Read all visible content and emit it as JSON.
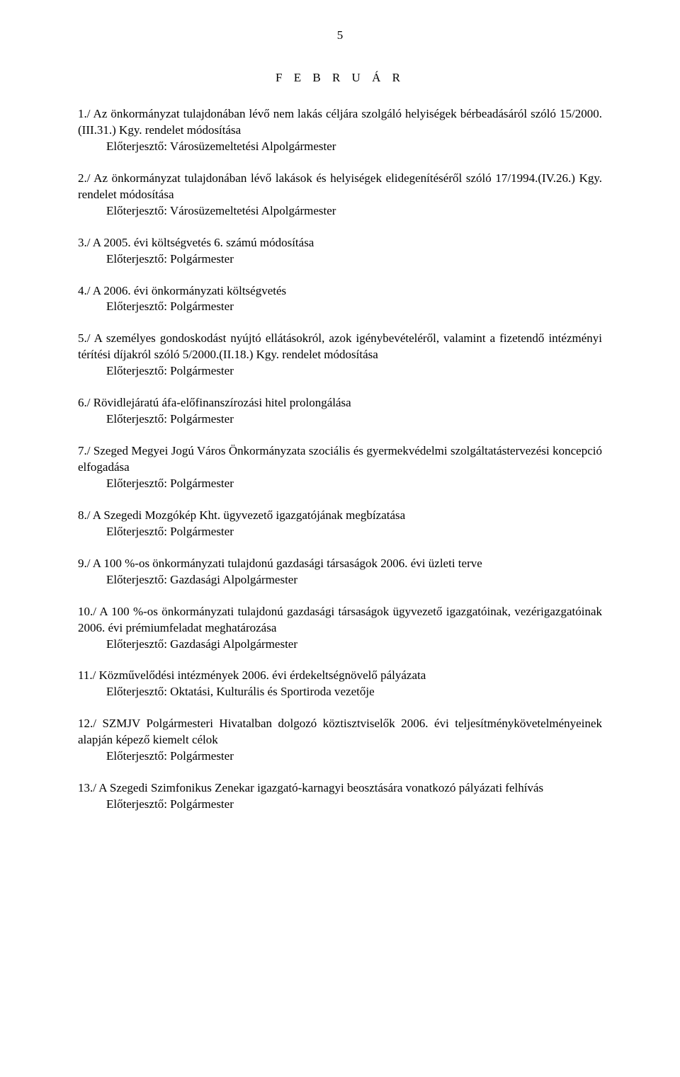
{
  "page_number": "5",
  "month_title": "F E B R U Á R",
  "items": [
    {
      "title": "1./ Az önkormányzat tulajdonában lévő nem lakás céljára szolgáló helyiségek bérbeadásáról szóló 15/2000.(III.31.) Kgy. rendelet módosítása",
      "submitter": "Előterjesztő: Városüzemeltetési Alpolgármester"
    },
    {
      "title": "2./ Az önkormányzat tulajdonában lévő lakások és helyiségek elidegenítéséről szóló 17/1994.(IV.26.) Kgy. rendelet módosítása",
      "submitter": "Előterjesztő: Városüzemeltetési Alpolgármester"
    },
    {
      "title": "3./ A 2005. évi költségvetés 6. számú módosítása",
      "submitter": "Előterjesztő: Polgármester"
    },
    {
      "title": "4./ A 2006. évi önkormányzati költségvetés",
      "submitter": "Előterjesztő: Polgármester"
    },
    {
      "title": "5./ A személyes gondoskodást nyújtó ellátásokról, azok igénybevételéről, valamint a fizetendő intézményi térítési díjakról szóló 5/2000.(II.18.) Kgy. rendelet módosítása",
      "submitter": "Előterjesztő: Polgármester"
    },
    {
      "title": "6./ Rövidlejáratú áfa-előfinanszírozási hitel prolongálása",
      "submitter": "Előterjesztő: Polgármester"
    },
    {
      "title": "7./ Szeged Megyei Jogú Város Önkormányzata szociális és gyermekvédelmi szolgáltatástervezési koncepció elfogadása",
      "submitter": "Előterjesztő: Polgármester"
    },
    {
      "title": "8./ A Szegedi Mozgókép Kht. ügyvezető igazgatójának megbízatása",
      "submitter": "Előterjesztő: Polgármester"
    },
    {
      "title": "9./ A 100 %-os önkormányzati tulajdonú gazdasági társaságok 2006. évi üzleti terve",
      "submitter": "Előterjesztő: Gazdasági Alpolgármester"
    },
    {
      "title": "10./ A 100 %-os önkormányzati tulajdonú gazdasági társaságok ügyvezető igazgatóinak, vezérigazgatóinak 2006. évi prémiumfeladat meghatározása",
      "submitter": "Előterjesztő: Gazdasági Alpolgármester"
    },
    {
      "title": "11./ Közművelődési intézmények 2006. évi érdekeltségnövelő pályázata",
      "submitter": "Előterjesztő: Oktatási, Kulturális és Sportiroda vezetője"
    },
    {
      "title": "12./ SZMJV Polgármesteri Hivatalban dolgozó köztisztviselők 2006. évi teljesítménykövetelményeinek alapján képező kiemelt célok",
      "submitter": "Előterjesztő: Polgármester"
    },
    {
      "title": "13./ A Szegedi Szimfonikus Zenekar igazgató-karnagyi beosztására vonatkozó pályázati felhívás",
      "submitter": "Előterjesztő: Polgármester"
    }
  ]
}
